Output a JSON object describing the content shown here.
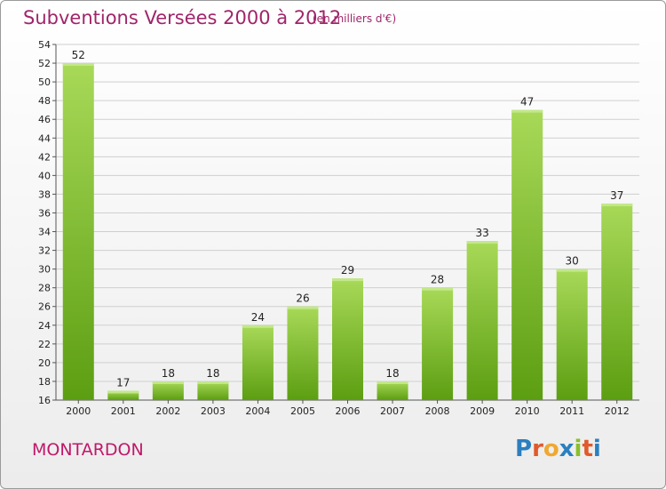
{
  "header": {
    "title": "Subventions Versées 2000 à 2012",
    "subtitle": "(en milliers d'€)"
  },
  "footer": {
    "town": "MONTARDON",
    "logo": "Proxiti",
    "logo_colors": [
      "#2a7fc0",
      "#e05a2b",
      "#f0a830",
      "#2a7fc0",
      "#8bbf2a",
      "#e05a2b",
      "#2a7fc0"
    ]
  },
  "colors": {
    "bar_light": "#a8d958",
    "bar_dark": "#5c9e12",
    "bar_top": "#c2e88a",
    "grid": "#cfcfcf"
  },
  "chart_data": {
    "type": "bar",
    "title": "Subventions Versées 2000 à 2012",
    "subtitle": "(en milliers d'€)",
    "xlabel": "",
    "ylabel": "",
    "ylim": [
      16,
      54
    ],
    "ytick_step": 2,
    "grid": true,
    "categories": [
      "2000",
      "2001",
      "2002",
      "2003",
      "2004",
      "2005",
      "2006",
      "2007",
      "2008",
      "2009",
      "2010",
      "2011",
      "2012"
    ],
    "values": [
      52,
      17,
      18,
      18,
      24,
      26,
      29,
      18,
      28,
      33,
      47,
      30,
      37
    ]
  }
}
